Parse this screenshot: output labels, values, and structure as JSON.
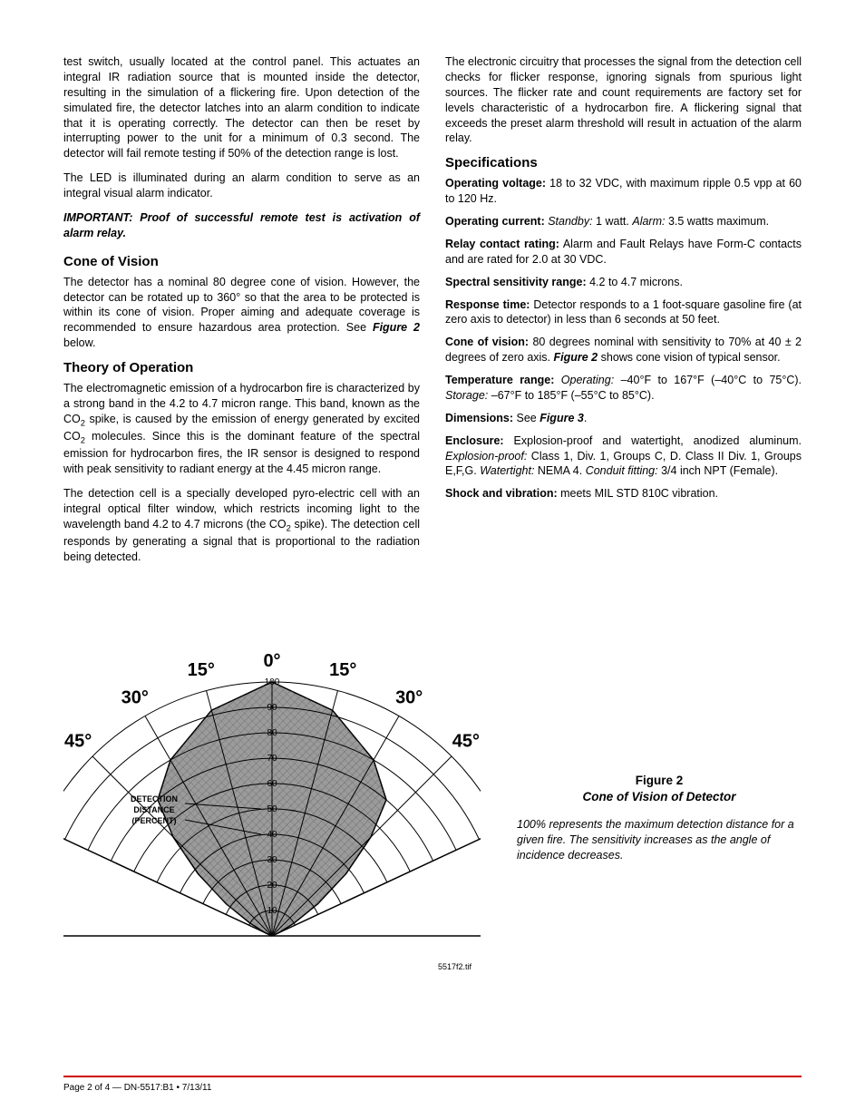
{
  "left_col": {
    "p1": "test switch, usually located at the control panel. This actuates an integral IR radiation source that is mounted inside the detector, resulting in the simulation of a flickering fire. Upon detection of the simulated fire, the detector latches into an alarm condition to indicate that it is operating correctly. The detector can then be reset by interrupting power to the unit for a minimum of 0.3 second. The detector will fail remote testing if 50% of the detection range is lost.",
    "p2": "The LED is illuminated during an alarm condition to serve as an integral visual alarm indicator.",
    "note": "IMPORTANT:  Proof of successful remote test is activation of alarm relay.",
    "h_cone": "Cone of Vision",
    "p_cone_a": "The detector has a nominal 80 degree cone of vision. However, the detector can be rotated up to 360° so that the area to be protected is within its cone of vision. Proper aiming and adequate coverage is recommended to ensure hazardous area protection. See ",
    "p_cone_fig": "Figure 2",
    "p_cone_b": " below.",
    "h_theory": "Theory of Operation",
    "p_th1_a": "The electromagnetic emission of a hydrocarbon fire is characterized by a strong band in the 4.2 to 4.7 micron range. This band, known as the CO",
    "p_th1_b": " spike, is caused by the emission of energy generated by excited CO",
    "p_th1_c": " molecules. Since this is the dominant feature of the spectral emission for hydrocarbon fires, the IR sensor is designed to respond with peak sensitivity to radiant energy at the 4.45 micron range.",
    "p_th2_a": "The detection cell is a specially developed pyro-electric cell with an integral optical filter window, which restricts incoming light to the wavelength band 4.2 to 4.7 microns (the CO",
    "p_th2_b": " spike). The detection cell responds by generating a signal that is proportional to the radiation being detected."
  },
  "right_col": {
    "p1": "The electronic circuitry that processes the signal from the detection cell checks for flicker response, ignoring signals from spurious light sources. The flicker rate and count requirements are factory set for levels characteristic of a hydrocarbon fire. A flickering signal that exceeds the preset alarm threshold will result in actuation of the alarm relay.",
    "h_spec": "Specifications",
    "spec1_l": "Operating voltage:",
    "spec1_v": " 18 to 32 VDC, with maximum ripple 0.5 vpp at 60 to 120 Hz.",
    "spec2_l": "Operating current:",
    "spec2_i1": " Standby:",
    "spec2_v1": " 1 watt. ",
    "spec2_i2": "Alarm:",
    "spec2_v2": " 3.5 watts maximum.",
    "spec3_l": "Relay contact rating:",
    "spec3_v": " Alarm and Fault Relays have Form-C contacts and are rated for 2.0 at 30 VDC.",
    "spec4_l": "Spectral sensitivity range:",
    "spec4_v": " 4.2 to 4.7 microns.",
    "spec5_l": "Response time:",
    "spec5_v": " Detector responds to a 1 foot-square gasoline fire (at zero axis to detector) in less than 6 seconds at 50 feet.",
    "spec6_l": "Cone of vision:",
    "spec6_v_a": " 80 degrees nominal with sensitivity to 70% at 40 ± 2 degrees of zero axis. ",
    "spec6_fig": "Figure 2",
    "spec6_v_b": " shows cone vision of typical sensor.",
    "spec7_l": "Temperature range:",
    "spec7_i1": " Operating:",
    "spec7_v1": " –40°F to 167°F (–40°C to 75°C). ",
    "spec7_i2": "Storage:",
    "spec7_v2": " –67°F to 185°F (–55°C to 85°C).",
    "spec8_l": "Dimensions:",
    "spec8_v_a": " See ",
    "spec8_fig": "Figure 3",
    "spec8_v_b": ".",
    "spec9_l": "Enclosure:",
    "spec9_v_a": " Explosion-proof and watertight, anodized aluminum. ",
    "spec9_i1": "Explosion-proof:",
    "spec9_v_b": " Class 1, Div. 1, Groups C, D. Class II Div. 1, Groups E,F,G. ",
    "spec9_i2": "Watertight:",
    "spec9_v_c": " NEMA 4. ",
    "spec9_i3": "Conduit fitting:",
    "spec9_v_d": " 3/4 inch NPT (Female).",
    "spec10_l": "Shock and vibration:",
    "spec10_v": " meets MIL STD 810C vibration."
  },
  "figure": {
    "title": "Figure 2",
    "subtitle": "Cone of Vision of Detector",
    "desc": "100% represents the maximum detection distance for a given fire. The sensitivity increases as the angle of incidence decreases.",
    "imgref": "5517f2.tif",
    "angles": [
      "0°",
      "15°",
      "30°",
      "45°"
    ],
    "det_label_1": "DETECTION",
    "det_label_2": "DISTANCE",
    "det_label_3": "(PERCENT)",
    "rings": [
      10,
      20,
      30,
      40,
      50,
      60,
      70,
      80,
      90,
      100
    ],
    "shape_color": "#9b9b9b",
    "hatch_color": "#6b6b6b",
    "line_color": "#000000",
    "bg": "#ffffff",
    "sensitivity_curve": [
      {
        "angle_deg": 0,
        "pct": 100
      },
      {
        "angle_deg": 15,
        "pct": 92
      },
      {
        "angle_deg": 30,
        "pct": 80
      },
      {
        "angle_deg": 40,
        "pct": 70
      },
      {
        "angle_deg": 45,
        "pct": 55
      },
      {
        "angle_deg": 50,
        "pct": 38
      },
      {
        "angle_deg": 55,
        "pct": 22
      },
      {
        "angle_deg": 60,
        "pct": 10
      },
      {
        "angle_deg": 65,
        "pct": 3
      }
    ]
  },
  "footer": {
    "rule_color": "#cc0000",
    "text": "Page 2 of 4 — DN-5517:B1 • 7/13/11"
  }
}
